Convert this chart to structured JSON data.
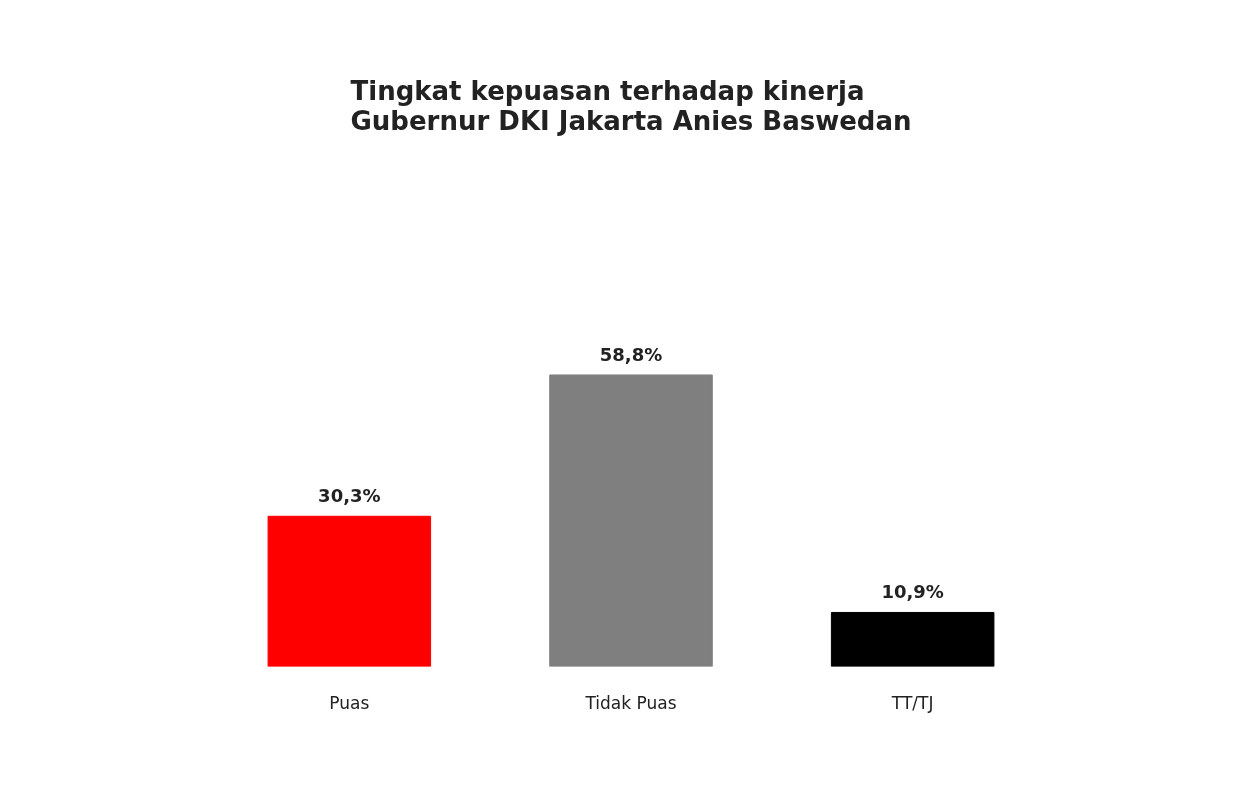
{
  "chart_data": {
    "type": "bar",
    "title": "Tingkat kepuasan terhadap kinerja\nGubernur DKI Jakarta Anies Baswedan",
    "categories": [
      "Puas",
      "Tidak Puas",
      "TT/TJ"
    ],
    "values": [
      30.3,
      58.8,
      10.9
    ],
    "colors": [
      "#ff0000",
      "#7f7f7f",
      "#000000"
    ],
    "value_labels": [
      "30,3%",
      "58,8%",
      "10,9%"
    ],
    "grid": false,
    "tick_labels": "x"
  }
}
